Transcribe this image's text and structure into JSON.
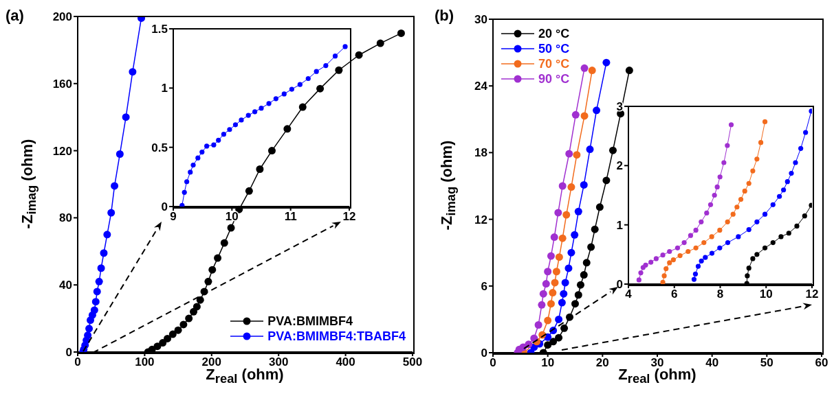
{
  "chart_data": [
    {
      "type": "line",
      "title": "(a)",
      "xlabel": "Z$_{real}$ (ohm)",
      "ylabel": "-Z$_{imag}$ (ohm)",
      "xlim": [
        0,
        500
      ],
      "xticks": [
        0,
        100,
        200,
        300,
        400,
        500
      ],
      "ylim": [
        0,
        200
      ],
      "yticks": [
        0,
        40,
        80,
        120,
        160,
        200
      ],
      "marker": "circle",
      "legend": "bottom right",
      "series": [
        {
          "name": "PVA:BMIMBF4",
          "color": "#000000",
          "x": [
            105,
            111,
            119,
            127,
            134,
            142,
            150,
            158,
            166,
            173,
            178,
            183,
            189,
            195,
            201,
            209,
            219,
            229,
            241,
            256,
            272,
            290,
            313,
            336,
            362,
            390,
            420,
            452,
            483
          ],
          "values": [
            0,
            1.5,
            3.4,
            5.5,
            8,
            10.6,
            13,
            16.4,
            20,
            24,
            27,
            31,
            36,
            42,
            49,
            56,
            65,
            74,
            85,
            96,
            109,
            120,
            133,
            146,
            157,
            168,
            177,
            184,
            190
          ]
        },
        {
          "name": "PVA:BMIMBF4:TBABF4",
          "color": "#0000ff",
          "x": [
            8,
            9,
            11,
            13,
            15,
            17,
            19,
            22,
            25,
            27,
            29,
            32,
            35,
            39,
            44,
            50,
            55,
            63,
            72,
            82,
            95
          ],
          "values": [
            0,
            1.5,
            4,
            7,
            10,
            14,
            19,
            22,
            25,
            30,
            36,
            42,
            50,
            59,
            70,
            83,
            99,
            118,
            140,
            167,
            199
          ]
        }
      ]
    },
    {
      "type": "line",
      "xlim": [
        9,
        12
      ],
      "xticks": [
        9,
        10,
        11,
        12
      ],
      "ylim": [
        0,
        1.5
      ],
      "yticks": [
        0,
        0.5,
        1,
        1.5
      ],
      "marker": "circle",
      "series": [
        {
          "color": "#0000ff",
          "x": [
            9.15,
            9.19,
            9.23,
            9.29,
            9.34,
            9.42,
            9.49,
            9.57,
            9.69,
            9.77,
            9.86,
            9.96,
            10.06,
            10.16,
            10.28,
            10.39,
            10.5,
            10.63,
            10.75,
            10.89,
            11.02,
            11.16,
            11.3,
            11.44,
            11.6,
            11.76,
            11.93
          ],
          "values": [
            0.01,
            0.12,
            0.21,
            0.29,
            0.35,
            0.41,
            0.46,
            0.51,
            0.52,
            0.56,
            0.61,
            0.65,
            0.69,
            0.73,
            0.77,
            0.8,
            0.83,
            0.87,
            0.91,
            0.95,
            0.99,
            1.03,
            1.08,
            1.14,
            1.19,
            1.27,
            1.35
          ]
        }
      ]
    },
    {
      "type": "line",
      "title": "(b)",
      "xlabel": "Z$_{real}$ (ohm)",
      "ylabel": "-Z$_{imag}$ (ohm)",
      "xlim": [
        0,
        60
      ],
      "xticks": [
        0,
        10,
        20,
        30,
        40,
        50,
        60
      ],
      "ylim": [
        0,
        30
      ],
      "yticks": [
        0,
        6,
        12,
        18,
        24,
        30
      ],
      "marker": "circle",
      "legend": "top left",
      "series": [
        {
          "name": "20 °C",
          "color": "#000000",
          "x": [
            9.2,
            10,
            11,
            12,
            13,
            14,
            15,
            15.6,
            16,
            16.6,
            17.1,
            17.9,
            18.6,
            19.5,
            20.7,
            21.9,
            23.3,
            24.9
          ],
          "values": [
            0,
            0.7,
            1,
            1.35,
            2.2,
            3.2,
            4.4,
            5.2,
            6.1,
            7,
            8.1,
            9.5,
            11.1,
            13.1,
            15.5,
            18.2,
            21.5,
            25.4
          ]
        },
        {
          "name": "50 °C",
          "color": "#0000ff",
          "x": [
            6.9,
            7.5,
            8.5,
            10,
            11,
            12,
            12.6,
            12.9,
            13.2,
            13.8,
            14.3,
            14.9,
            15.6,
            16.6,
            17.7,
            18.9,
            20.7
          ],
          "values": [
            0,
            0.5,
            0.8,
            1.4,
            2,
            3,
            4.5,
            5.3,
            6.3,
            7.6,
            9,
            10.6,
            12.7,
            15.1,
            18.3,
            21.8,
            26.1
          ]
        },
        {
          "name": "70 °C",
          "color": "#f26b1d",
          "x": [
            5.6,
            8,
            9,
            10,
            10.6,
            10.9,
            11.3,
            11.6,
            12.1,
            12.7,
            13.4,
            14.3,
            15.3,
            16.7,
            18.1
          ],
          "values": [
            0,
            1,
            1.6,
            2.9,
            4.4,
            5.4,
            6.3,
            7.3,
            8.6,
            10.3,
            12.4,
            14.9,
            17.8,
            21.3,
            25.4
          ]
        },
        {
          "name": "90 °C",
          "color": "#a030d0",
          "x": [
            4.5,
            4.8,
            5.5,
            6.5,
            7.5,
            8.3,
            8.9,
            9.2,
            9.7,
            10,
            10.6,
            11.2,
            11.9,
            12.7,
            13.9,
            15.1,
            16.7
          ],
          "values": [
            0,
            0.3,
            0.5,
            0.75,
            1.3,
            2.5,
            4.3,
            5.3,
            6.2,
            7.3,
            8.7,
            10.4,
            12.6,
            15,
            17.9,
            21.4,
            25.6
          ]
        }
      ]
    },
    {
      "type": "line",
      "xlim": [
        4,
        12
      ],
      "xticks": [
        4,
        6,
        8,
        10,
        12
      ],
      "ylim": [
        0,
        3
      ],
      "yticks": [
        0,
        1,
        2,
        3
      ],
      "marker": "circle",
      "series": [
        {
          "color": "#000000",
          "x": [
            9.16,
            9.18,
            9.25,
            9.42,
            9.6,
            9.95,
            10.3,
            10.65,
            10.99,
            11.34,
            11.68,
            11.97
          ],
          "values": [
            0.01,
            0.14,
            0.27,
            0.43,
            0.5,
            0.61,
            0.7,
            0.8,
            0.86,
            0.98,
            1.15,
            1.33
          ]
        },
        {
          "color": "#0000ff",
          "x": [
            6.86,
            6.92,
            7.04,
            7.18,
            7.35,
            7.64,
            7.98,
            8.33,
            8.79,
            9.25,
            9.6,
            9.95,
            10.3,
            10.58,
            10.76,
            10.93,
            11.1,
            11.28,
            11.51,
            11.72,
            11.97
          ],
          "values": [
            0.08,
            0.17,
            0.3,
            0.39,
            0.45,
            0.52,
            0.61,
            0.7,
            0.8,
            0.92,
            1.05,
            1.18,
            1.34,
            1.48,
            1.59,
            1.73,
            1.87,
            2.05,
            2.29,
            2.56,
            2.92
          ]
        },
        {
          "color": "#f26b1d",
          "x": [
            5.5,
            5.56,
            5.64,
            5.79,
            5.96,
            6.25,
            6.6,
            6.94,
            7.29,
            7.63,
            7.98,
            8.32,
            8.56,
            8.73,
            8.9,
            9.07,
            9.25,
            9.42,
            9.6,
            9.77,
            9.95
          ],
          "values": [
            0.03,
            0.14,
            0.26,
            0.36,
            0.41,
            0.48,
            0.55,
            0.61,
            0.7,
            0.8,
            0.91,
            1.05,
            1.18,
            1.3,
            1.43,
            1.57,
            1.7,
            1.91,
            2.11,
            2.39,
            2.74
          ]
        },
        {
          "color": "#a030d0",
          "x": [
            4.46,
            4.54,
            4.64,
            4.75,
            4.98,
            5.21,
            5.5,
            5.79,
            6.14,
            6.43,
            6.71,
            6.94,
            7.17,
            7.41,
            7.58,
            7.75,
            7.87,
            7.99,
            8.16,
            8.31,
            8.48
          ],
          "values": [
            0.07,
            0.19,
            0.28,
            0.32,
            0.37,
            0.43,
            0.49,
            0.55,
            0.61,
            0.7,
            0.82,
            0.91,
            1.05,
            1.2,
            1.34,
            1.5,
            1.64,
            1.81,
            2.05,
            2.34,
            2.69
          ]
        }
      ]
    }
  ]
}
